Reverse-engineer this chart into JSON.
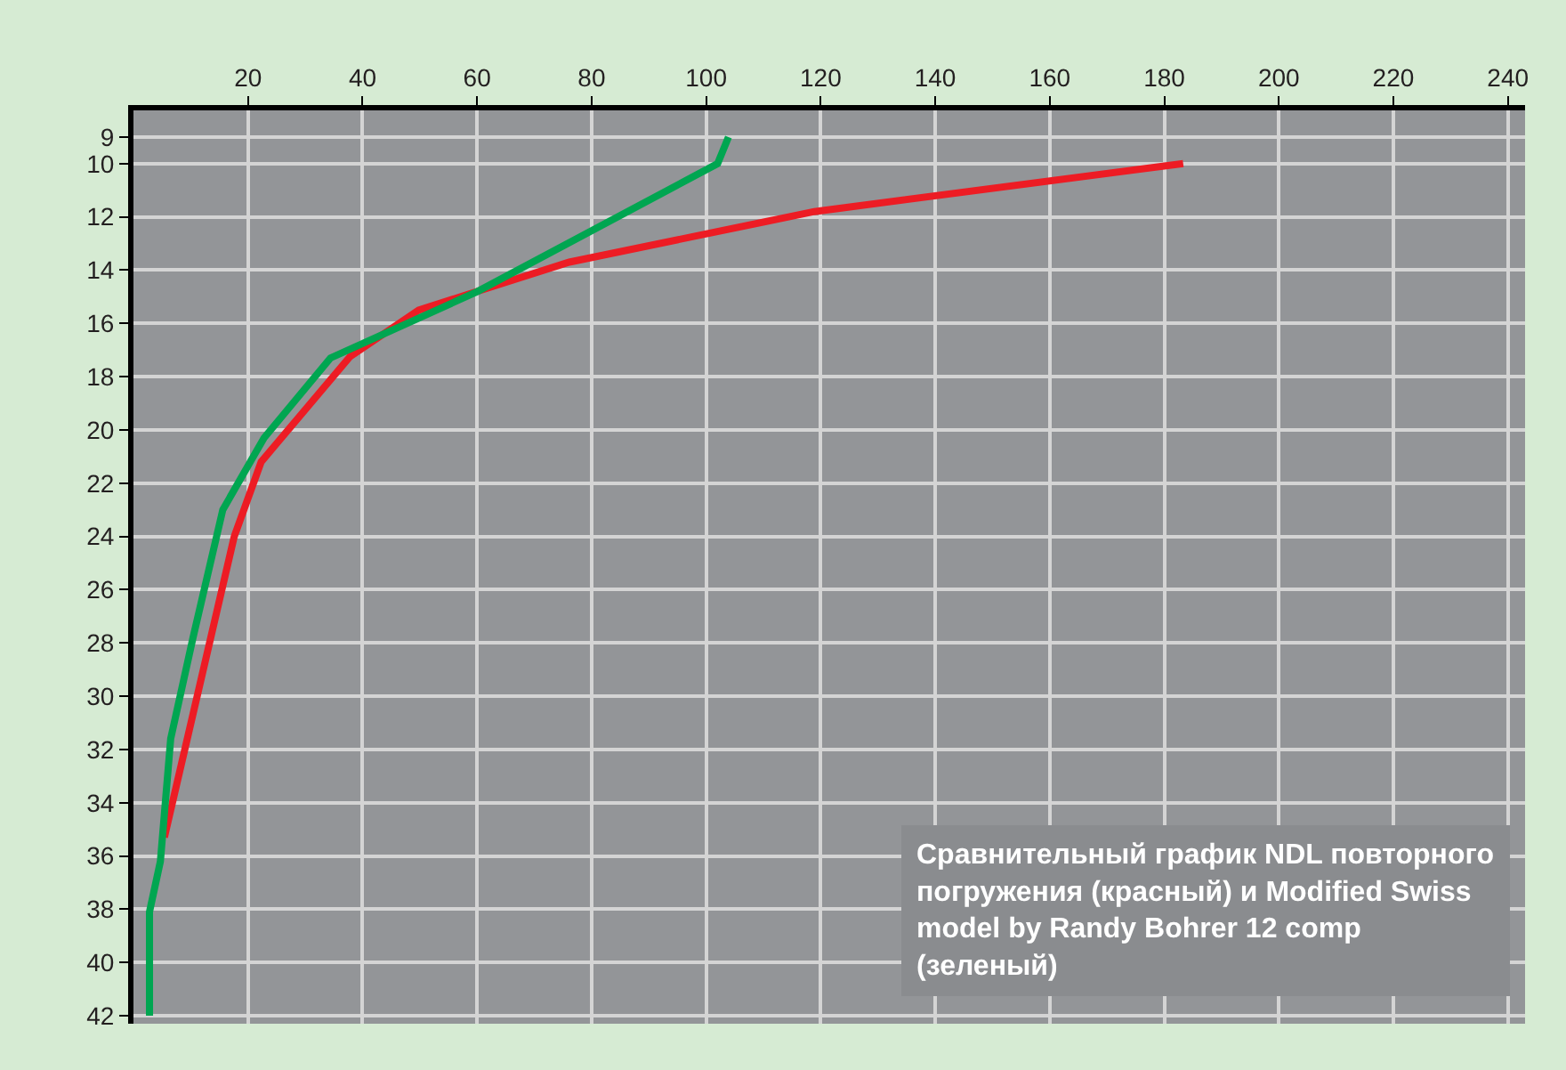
{
  "chart_data": {
    "type": "line",
    "annotations": [
      "Сравнительный график NDL повторного погружения (красный) и Modified Swiss model by Randy Bohrer 12 comp (зеленый)"
    ],
    "series": [
      {
        "color": "#ed1c24",
        "x": [
          183.3,
          118.9,
          76.1,
          49.8,
          37.8,
          22.3,
          17.6,
          5.4
        ],
        "values": [
          10,
          11.8,
          13.7,
          15.5,
          17.25,
          21.2,
          24.0,
          35.3
        ]
      },
      {
        "color": "#00a651",
        "x": [
          103.9,
          102,
          60.1,
          34.4,
          22.8,
          15.6,
          10.4,
          6.5,
          4.7,
          2.8,
          2.8
        ],
        "values": [
          9,
          10,
          14.8,
          17.3,
          20.3,
          23.0,
          27.8,
          31.6,
          36.2,
          38.1,
          42
        ]
      }
    ],
    "xlim": [
      0,
      243
    ],
    "xticks": [
      20,
      40,
      60,
      80,
      100,
      120,
      140,
      160,
      180,
      200,
      220,
      240
    ],
    "ylim": [
      42.3,
      8
    ],
    "yticks": [
      9,
      10,
      12,
      14,
      16,
      18,
      20,
      22,
      24,
      26,
      28,
      30,
      32,
      34,
      36,
      38,
      40,
      42
    ],
    "grid": true
  }
}
